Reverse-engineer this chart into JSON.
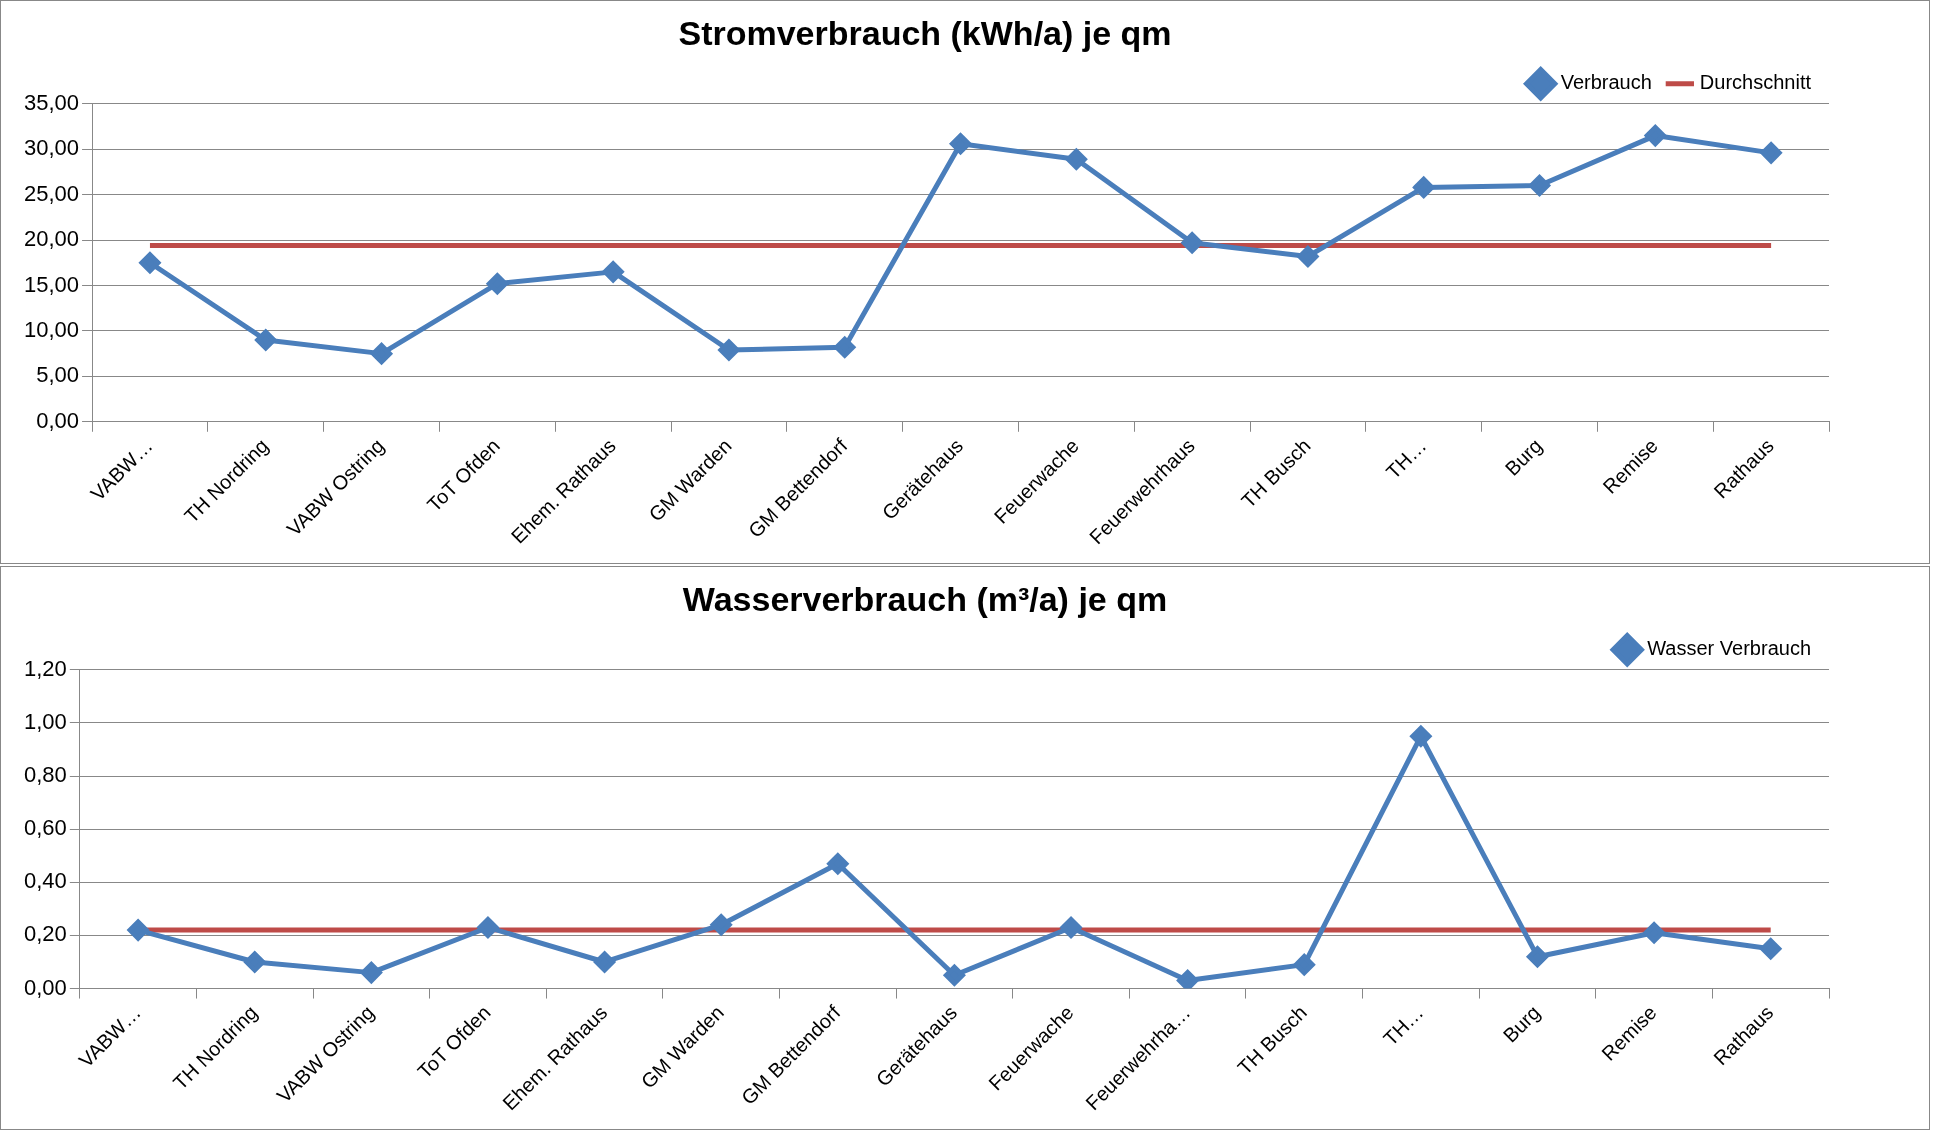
{
  "chart_data": [
    {
      "type": "line",
      "title": "Stromverbrauch (kWh/a) je qm",
      "categories": [
        "VABW…",
        "TH Nordring",
        "VABW Ostring",
        "ToT Ofden",
        "Ehem. Rathaus",
        "GM Warden",
        "GM Bettendorf",
        "Gerätehaus",
        "Feuerwache",
        "Feuerwehrhaus",
        "TH Busch",
        "TH…",
        "Burg",
        "Remise",
        "Rathaus"
      ],
      "series": [
        {
          "name": "Verbrauch",
          "color": "#4a7ebb",
          "marker": "diamond",
          "values": [
            17.5,
            9.0,
            7.5,
            15.2,
            16.5,
            7.9,
            8.2,
            30.6,
            28.9,
            19.7,
            18.2,
            25.8,
            26.0,
            31.5,
            29.6
          ]
        },
        {
          "name": "Durchschnitt",
          "color": "#be4b48",
          "marker": "none",
          "values": [
            19.4,
            19.4,
            19.4,
            19.4,
            19.4,
            19.4,
            19.4,
            19.4,
            19.4,
            19.4,
            19.4,
            19.4,
            19.4,
            19.4,
            19.4
          ]
        }
      ],
      "ylim": [
        0,
        35
      ],
      "yticks": [
        {
          "value": 0,
          "label": "0,00"
        },
        {
          "value": 5,
          "label": "5,00"
        },
        {
          "value": 10,
          "label": "10,00"
        },
        {
          "value": 15,
          "label": "15,00"
        },
        {
          "value": 20,
          "label": "20,00"
        },
        {
          "value": 25,
          "label": "25,00"
        },
        {
          "value": 30,
          "label": "30,00"
        },
        {
          "value": 35,
          "label": "35,00"
        }
      ],
      "grid": "y",
      "legend": "top right"
    },
    {
      "type": "line",
      "title": "Wasserverbrauch (m³/a) je qm",
      "categories": [
        "VABW…",
        "TH Nordring",
        "VABW Ostring",
        "ToT Ofden",
        "Ehem. Rathaus",
        "GM Warden",
        "GM Bettendorf",
        "Gerätehaus",
        "Feuerwache",
        "Feuerwehrha…",
        "TH Busch",
        "TH…",
        "Burg",
        "Remise",
        "Rathaus"
      ],
      "series": [
        {
          "name": "Wasser Verbrauch",
          "color": "#4a7ebb",
          "marker": "diamond",
          "values": [
            0.22,
            0.1,
            0.06,
            0.23,
            0.1,
            0.24,
            0.47,
            0.05,
            0.23,
            0.03,
            0.09,
            0.95,
            0.12,
            0.21,
            0.15
          ]
        },
        {
          "color": "#be4b48",
          "marker": "none",
          "values": [
            0.22,
            0.22,
            0.22,
            0.22,
            0.22,
            0.22,
            0.22,
            0.22,
            0.22,
            0.22,
            0.22,
            0.22,
            0.22,
            0.22,
            0.22
          ]
        }
      ],
      "ylim": [
        0,
        1.2
      ],
      "yticks": [
        {
          "value": 0,
          "label": "0,00"
        },
        {
          "value": 0.2,
          "label": "0,20"
        },
        {
          "value": 0.4,
          "label": "0,40"
        },
        {
          "value": 0.6,
          "label": "0,60"
        },
        {
          "value": 0.8,
          "label": "0,80"
        },
        {
          "value": 1.0,
          "label": "1,00"
        },
        {
          "value": 1.2,
          "label": "1,20"
        }
      ],
      "grid": "y",
      "legend": "top right"
    }
  ]
}
